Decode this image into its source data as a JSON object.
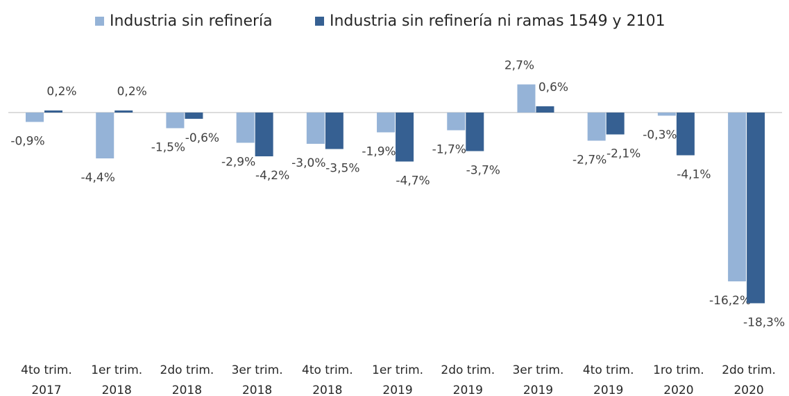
{
  "chart_data": {
    "type": "bar",
    "categories": [
      [
        "4to trim.",
        "2017"
      ],
      [
        "1er trim.",
        "2018"
      ],
      [
        "2do trim.",
        "2018"
      ],
      [
        "3er trim.",
        "2018"
      ],
      [
        "4to trim.",
        "2018"
      ],
      [
        "1er trim.",
        "2019"
      ],
      [
        "2do trim.",
        "2019"
      ],
      [
        "3er trim.",
        "2019"
      ],
      [
        "4to trim.",
        "2019"
      ],
      [
        "1ro trim.",
        "2020"
      ],
      [
        "2do trim.",
        "2020"
      ]
    ],
    "series": [
      {
        "name": "Industria sin refinería",
        "color": "#95b3d7",
        "values": [
          -0.9,
          -4.4,
          -1.5,
          -2.9,
          -3.0,
          -1.9,
          -1.7,
          2.7,
          -2.7,
          -0.3,
          -16.2
        ],
        "value_labels": [
          "-0,9%",
          "-4,4%",
          "-1,5%",
          "-2,9%",
          "-3,0%",
          "-1,9%",
          "-1,7%",
          "2,7%",
          "-2,7%",
          "-0,3%",
          "-16,2%"
        ]
      },
      {
        "name": "Industria sin refinería ni ramas 1549 y 2101",
        "color": "#366092",
        "values": [
          0.2,
          0.2,
          -0.6,
          -4.2,
          -3.5,
          -4.7,
          -3.7,
          0.6,
          -2.1,
          -4.1,
          -18.3
        ],
        "value_labels": [
          "0,2%",
          "0,2%",
          "-0,6%",
          "-4,2%",
          "-3,5%",
          "-4,7%",
          "-3,7%",
          "0,6%",
          "-2,1%",
          "-4,1%",
          "-18,3%"
        ]
      }
    ],
    "ylim": [
      -20,
      5
    ],
    "legend": "top"
  }
}
